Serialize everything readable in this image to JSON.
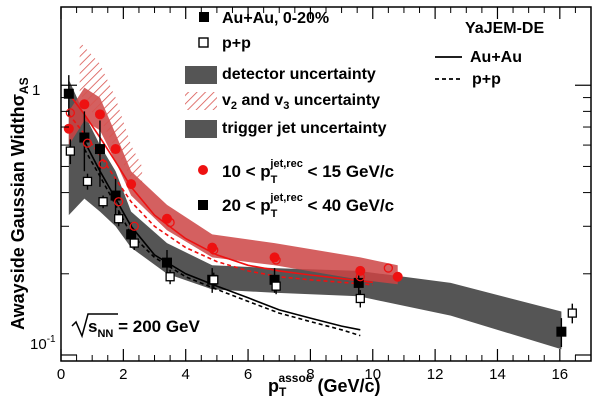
{
  "chart_data": {
    "type": "scatter",
    "x_axis": {
      "label_main": "p",
      "label_sub": "T",
      "label_sup": "assoc",
      "label_unit": " (GeV/c)",
      "range": [
        0,
        17
      ],
      "ticks": [
        0,
        2,
        4,
        6,
        8,
        10,
        12,
        14,
        16
      ],
      "tick_labels": [
        "0",
        "2",
        "4",
        "6",
        "8",
        "10",
        "12",
        "14",
        "16"
      ]
    },
    "y_axis": {
      "label_main": "Awayside Gaussian Width",
      "label_sym": "σ",
      "label_sub": "AS",
      "scale": "log",
      "range": [
        0.095,
        1.95
      ],
      "major_ticks": [
        0.1,
        1
      ],
      "major_tick_labels": [
        "10",
        "1"
      ],
      "major_tick_exponent": "-1"
    },
    "legend_left": {
      "au_au": "Au+Au, 0-20%",
      "pp": "p+p",
      "detector_unc": "detector uncertainty",
      "flow_unc_v": "v",
      "flow_unc_2": "2",
      "flow_unc_and": " and v",
      "flow_unc_3": "3",
      "flow_unc_rest": " uncertainty",
      "trigger_unc": "trigger jet uncertainty"
    },
    "legend_right": {
      "title": "YaJEM-DE",
      "line_auau": "Au+Au",
      "line_pp": "p+p"
    },
    "bin_labels": {
      "red_prefix": "10 < p",
      "red_sub": "T",
      "red_sup": "jet,rec",
      "red_suffix": " < 15 GeV/c",
      "black_prefix": "20 < p",
      "black_sub": "T",
      "black_sup": "jet,rec",
      "black_suffix": " < 40 GeV/c"
    },
    "energy_label": {
      "s": "s",
      "sub": "NN",
      "rest": " = 200 GeV"
    },
    "colors": {
      "red": "#ee1111",
      "red_band": "#cc4444",
      "grey_band": "#555555",
      "hatch": "#d9534f"
    },
    "series": [
      {
        "name": "Au+Au, 0-20%, 20 < pT jet,rec < 40 GeV/c",
        "marker": "filled-square",
        "color": "#000000",
        "x": [
          0.25,
          0.75,
          1.25,
          1.75,
          2.25,
          3.4,
          4.85,
          6.85,
          9.55,
          16.05
        ],
        "y": [
          0.93,
          0.64,
          0.58,
          0.39,
          0.28,
          0.22,
          0.19,
          0.19,
          0.185,
          0.122
        ],
        "yerr": [
          0.16,
          0.16,
          0.16,
          0.06,
          0.03,
          0.025,
          0.02,
          0.02,
          0.02,
          0.015
        ]
      },
      {
        "name": "p+p, 20 < pT jet,rec < 40 GeV/c",
        "marker": "open-square",
        "color": "#000000",
        "x": [
          0.3,
          0.85,
          1.35,
          1.85,
          2.35,
          3.5,
          4.9,
          6.9,
          9.6,
          16.4
        ],
        "y": [
          0.57,
          0.44,
          0.37,
          0.32,
          0.26,
          0.195,
          0.19,
          0.18,
          0.162,
          0.143
        ],
        "yerr": [
          0.06,
          0.03,
          0.02,
          0.02,
          0.015,
          0.012,
          0.012,
          0.012,
          0.012,
          0.012
        ]
      },
      {
        "name": "Au+Au, 0-20%, 10 < pT jet,rec < 15 GeV/c",
        "marker": "filled-circle",
        "color": "#ee1111",
        "x": [
          0.25,
          0.75,
          1.25,
          1.75,
          2.25,
          3.4,
          4.85,
          6.85,
          9.6,
          10.8
        ],
        "y": [
          0.69,
          0.85,
          0.78,
          0.58,
          0.43,
          0.32,
          0.25,
          0.23,
          0.205,
          0.195
        ]
      },
      {
        "name": "p+p, 10 < pT jet,rec < 15 GeV/c",
        "marker": "open-circle",
        "color": "#ee1111",
        "x": [
          0.3,
          0.85,
          1.35,
          1.85,
          2.35,
          3.5,
          4.9,
          6.9,
          9.6,
          10.5
        ],
        "y": [
          0.79,
          0.61,
          0.51,
          0.37,
          0.3,
          0.31,
          0.245,
          0.225,
          0.195,
          0.21
        ]
      }
    ],
    "model_curves": [
      {
        "name": "YaJEM-DE Au+Au, 20 < pT jet,rec < 40",
        "style": "solid",
        "color": "#000000",
        "x": [
          0.75,
          1.25,
          1.75,
          2.25,
          3.0,
          4.0,
          5.0,
          6.0,
          7.0,
          8.0,
          9.0,
          9.6
        ],
        "y": [
          0.62,
          0.48,
          0.38,
          0.3,
          0.235,
          0.2,
          0.18,
          0.163,
          0.147,
          0.137,
          0.128,
          0.124
        ]
      },
      {
        "name": "YaJEM-DE p+p, 20 < pT jet,rec < 40",
        "style": "dashed",
        "color": "#000000",
        "x": [
          0.75,
          1.25,
          1.75,
          2.25,
          3.0,
          4.0,
          5.0,
          6.0,
          7.0,
          8.0,
          9.0,
          9.6
        ],
        "y": [
          0.58,
          0.46,
          0.36,
          0.28,
          0.23,
          0.195,
          0.175,
          0.158,
          0.143,
          0.133,
          0.124,
          0.118
        ]
      },
      {
        "name": "YaJEM-DE Au+Au, 10 < pT jet,rec < 15",
        "style": "solid",
        "color": "#ee1111",
        "x": [
          0.25,
          0.75,
          1.25,
          1.75,
          2.25,
          3.0,
          4.0,
          5.0,
          6.0,
          7.0,
          8.0,
          9.0,
          10.0
        ],
        "y": [
          0.93,
          0.78,
          0.64,
          0.52,
          0.42,
          0.33,
          0.27,
          0.235,
          0.215,
          0.205,
          0.198,
          0.192,
          0.186
        ]
      },
      {
        "name": "YaJEM-DE p+p, 10 < pT jet,rec < 15",
        "style": "dashed",
        "color": "#ee1111",
        "x": [
          0.25,
          0.75,
          1.25,
          1.75,
          2.25,
          3.0,
          4.0,
          5.0,
          6.0,
          7.0,
          8.0,
          9.0,
          10.0
        ],
        "y": [
          0.78,
          0.66,
          0.55,
          0.45,
          0.37,
          0.3,
          0.25,
          0.222,
          0.205,
          0.195,
          0.19,
          0.186,
          0.182
        ]
      }
    ],
    "bands": [
      {
        "name": "trigger jet uncertainty",
        "style": "grey",
        "x": [
          0.25,
          0.75,
          1.25,
          1.75,
          2.25,
          3.4,
          4.85,
          6.85,
          9.55,
          12.5,
          16.05
        ],
        "y_low": [
          0.33,
          0.38,
          0.34,
          0.3,
          0.25,
          0.2,
          0.175,
          0.17,
          0.165,
          0.14,
          0.105
        ],
        "y_high": [
          1.05,
          0.78,
          0.6,
          0.48,
          0.34,
          0.26,
          0.215,
          0.21,
          0.205,
          0.185,
          0.145
        ]
      },
      {
        "name": "detector uncertainty",
        "style": "red",
        "x": [
          0.25,
          0.75,
          1.25,
          1.75,
          2.25,
          3.4,
          4.85,
          6.85,
          9.6,
          10.8
        ],
        "y_low": [
          0.6,
          0.74,
          0.68,
          0.52,
          0.39,
          0.29,
          0.23,
          0.215,
          0.19,
          0.183
        ],
        "y_high": [
          0.8,
          0.98,
          0.9,
          0.66,
          0.48,
          0.36,
          0.28,
          0.26,
          0.23,
          0.215
        ]
      },
      {
        "name": "v2 and v3 uncertainty",
        "style": "hatch",
        "x": [
          0.6,
          0.85,
          1.25,
          1.75,
          2.25,
          2.6
        ],
        "y_low": [
          0.95,
          0.82,
          0.75,
          0.58,
          0.45,
          0.43
        ],
        "y_high": [
          1.45,
          1.35,
          1.2,
          0.9,
          0.6,
          0.5
        ]
      }
    ]
  }
}
